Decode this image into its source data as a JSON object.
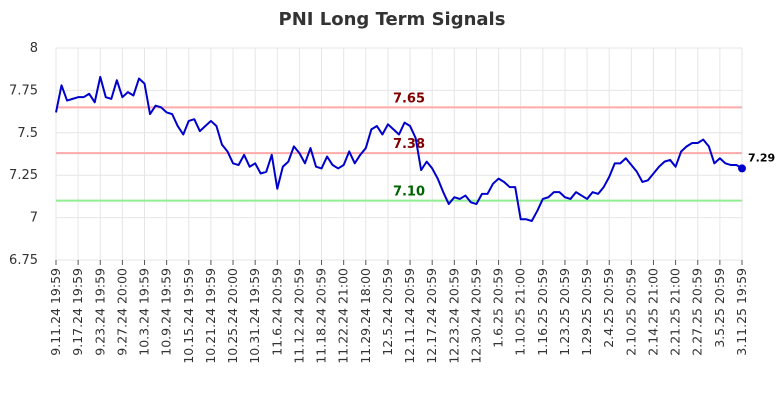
{
  "chart_data": {
    "type": "line",
    "title": "PNI Long Term Signals",
    "xlabel": "",
    "ylabel": "",
    "ylim": [
      6.75,
      8.0
    ],
    "grid": true,
    "y_ticks": [
      "6.75",
      "7",
      "7.25",
      "7.5",
      "7.75",
      "8"
    ],
    "x_tick_labels": [
      "9.11.24 19:59",
      "9.17.24 19:59",
      "9.23.24 19:59",
      "9.27.24 20:00",
      "10.3.24 19:59",
      "10.9.24 19:59",
      "10.15.24 19:59",
      "10.21.24 19:59",
      "10.25.24 20:00",
      "10.31.24 19:59",
      "11.6.24 20:59",
      "11.12.24 20:59",
      "11.18.24 20:59",
      "11.22.24 21:00",
      "11.29.24 18:00",
      "12.5.24 20:59",
      "12.11.24 20:59",
      "12.17.24 20:59",
      "12.23.24 20:59",
      "12.30.24 20:59",
      "1.6.25 20:59",
      "1.10.25 21:00",
      "1.16.25 20:59",
      "1.23.25 20:59",
      "1.29.25 20:59",
      "2.4.25 20:59",
      "2.10.25 20:59",
      "2.14.25 21:00",
      "2.21.25 21:00",
      "2.27.25 20:59",
      "3.5.25 20:59",
      "3.11.25 19:59"
    ],
    "series": [
      {
        "color": "#0000cc",
        "values": [
          7.62,
          7.78,
          7.69,
          7.7,
          7.71,
          7.71,
          7.73,
          7.68,
          7.83,
          7.71,
          7.7,
          7.81,
          7.71,
          7.74,
          7.72,
          7.82,
          7.79,
          7.61,
          7.66,
          7.65,
          7.62,
          7.61,
          7.54,
          7.49,
          7.57,
          7.58,
          7.51,
          7.54,
          7.57,
          7.54,
          7.43,
          7.39,
          7.32,
          7.31,
          7.37,
          7.3,
          7.32,
          7.26,
          7.27,
          7.37,
          7.17,
          7.3,
          7.33,
          7.42,
          7.38,
          7.32,
          7.41,
          7.3,
          7.29,
          7.36,
          7.31,
          7.29,
          7.31,
          7.39,
          7.32,
          7.37,
          7.41,
          7.52,
          7.54,
          7.49,
          7.55,
          7.52,
          7.49,
          7.56,
          7.54,
          7.47,
          7.28,
          7.33,
          7.29,
          7.23,
          7.15,
          7.08,
          7.12,
          7.11,
          7.13,
          7.09,
          7.08,
          7.14,
          7.14,
          7.2,
          7.23,
          7.21,
          7.18,
          7.18,
          6.99,
          6.99,
          6.98,
          7.04,
          7.11,
          7.12,
          7.15,
          7.15,
          7.12,
          7.11,
          7.15,
          7.13,
          7.11,
          7.15,
          7.14,
          7.18,
          7.24,
          7.32,
          7.32,
          7.35,
          7.31,
          7.27,
          7.21,
          7.22,
          7.26,
          7.3,
          7.33,
          7.34,
          7.3,
          7.39,
          7.42,
          7.44,
          7.44,
          7.46,
          7.42,
          7.32,
          7.35,
          7.32,
          7.31,
          7.31,
          7.29
        ]
      }
    ],
    "reference_lines": [
      {
        "label": "7.65",
        "value": 7.65,
        "color": "#ffaaaa",
        "label_color": "#800000"
      },
      {
        "label": "7.38",
        "value": 7.38,
        "color": "#ffaaaa",
        "label_color": "#800000"
      },
      {
        "label": "7.10",
        "value": 7.1,
        "color": "#90ee90",
        "label_color": "#006400"
      }
    ],
    "last_value_label": "7.29"
  }
}
